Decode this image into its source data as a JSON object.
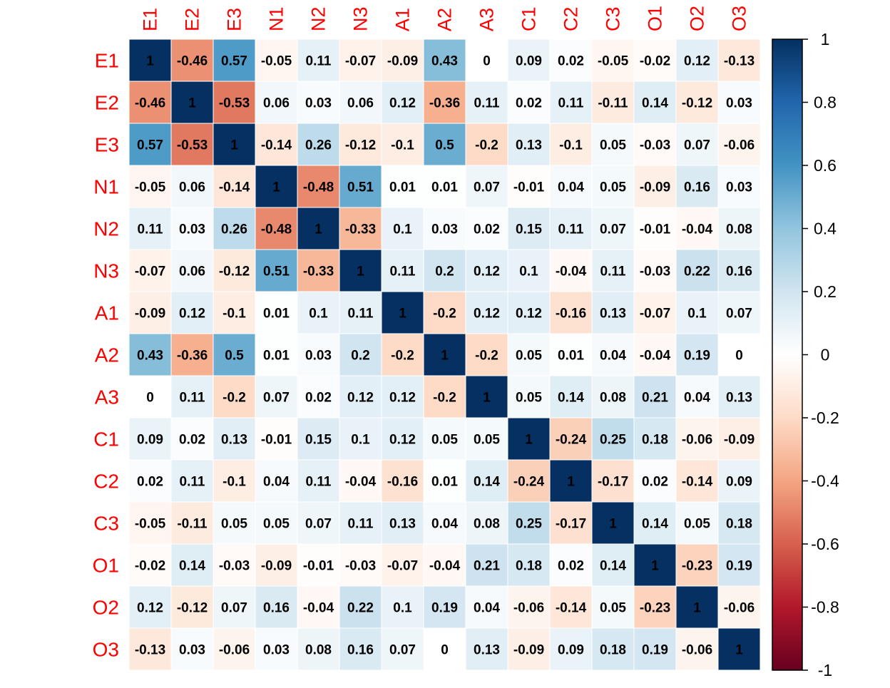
{
  "chart_data": {
    "type": "heatmap",
    "title": "",
    "labels": [
      "E1",
      "E2",
      "E3",
      "N1",
      "N2",
      "N3",
      "A1",
      "A2",
      "A3",
      "C1",
      "C2",
      "C3",
      "O1",
      "O2",
      "O3"
    ],
    "matrix": [
      [
        1,
        -0.46,
        0.57,
        -0.05,
        0.11,
        -0.07,
        -0.09,
        0.43,
        0,
        0.09,
        0.02,
        -0.05,
        -0.02,
        0.12,
        -0.13
      ],
      [
        -0.46,
        1,
        -0.53,
        0.06,
        0.03,
        0.06,
        0.12,
        -0.36,
        0.11,
        0.02,
        0.11,
        -0.11,
        0.14,
        -0.12,
        0.03
      ],
      [
        0.57,
        -0.53,
        1,
        -0.14,
        0.26,
        -0.12,
        -0.1,
        0.5,
        -0.2,
        0.13,
        -0.1,
        0.05,
        -0.03,
        0.07,
        -0.06
      ],
      [
        -0.05,
        0.06,
        -0.14,
        1,
        -0.48,
        0.51,
        0.01,
        0.01,
        0.07,
        -0.01,
        0.04,
        0.05,
        -0.09,
        0.16,
        0.03
      ],
      [
        0.11,
        0.03,
        0.26,
        -0.48,
        1,
        -0.33,
        0.1,
        0.03,
        0.02,
        0.15,
        0.11,
        0.07,
        -0.01,
        -0.04,
        0.08
      ],
      [
        -0.07,
        0.06,
        -0.12,
        0.51,
        -0.33,
        1,
        0.11,
        0.2,
        0.12,
        0.1,
        -0.04,
        0.11,
        -0.03,
        0.22,
        0.16
      ],
      [
        -0.09,
        0.12,
        -0.1,
        0.01,
        0.1,
        0.11,
        1,
        -0.2,
        0.12,
        0.12,
        -0.16,
        0.13,
        -0.07,
        0.1,
        0.07
      ],
      [
        0.43,
        -0.36,
        0.5,
        0.01,
        0.03,
        0.2,
        -0.2,
        1,
        -0.2,
        0.05,
        0.01,
        0.04,
        -0.04,
        0.19,
        0
      ],
      [
        0,
        0.11,
        -0.2,
        0.07,
        0.02,
        0.12,
        0.12,
        -0.2,
        1,
        0.05,
        0.14,
        0.08,
        0.21,
        0.04,
        0.13
      ],
      [
        0.09,
        0.02,
        0.13,
        -0.01,
        0.15,
        0.1,
        0.12,
        0.05,
        0.05,
        1,
        -0.24,
        0.25,
        0.18,
        -0.06,
        -0.09
      ],
      [
        0.02,
        0.11,
        -0.1,
        0.04,
        0.11,
        -0.04,
        -0.16,
        0.01,
        0.14,
        -0.24,
        1,
        -0.17,
        0.02,
        -0.14,
        0.09
      ],
      [
        -0.05,
        -0.11,
        0.05,
        0.05,
        0.07,
        0.11,
        0.13,
        0.04,
        0.08,
        0.25,
        -0.17,
        1,
        0.14,
        0.05,
        0.18
      ],
      [
        -0.02,
        0.14,
        -0.03,
        -0.09,
        -0.01,
        -0.03,
        -0.07,
        -0.04,
        0.21,
        0.18,
        0.02,
        0.14,
        1,
        -0.23,
        0.19
      ],
      [
        0.12,
        -0.12,
        0.07,
        0.16,
        -0.04,
        0.22,
        0.1,
        0.19,
        0.04,
        -0.06,
        -0.14,
        0.05,
        -0.23,
        1,
        -0.06
      ],
      [
        -0.13,
        0.03,
        -0.06,
        0.03,
        0.08,
        0.16,
        0.07,
        0,
        0.13,
        -0.09,
        0.09,
        0.18,
        0.19,
        -0.06,
        1
      ]
    ],
    "colorbar": {
      "range": [
        -1,
        1
      ],
      "ticks": [
        1,
        0.8,
        0.6,
        0.4,
        0.2,
        0,
        -0.2,
        -0.4,
        -0.6,
        -0.8,
        -1
      ],
      "tick_labels": [
        "1",
        "0.8",
        "0.6",
        "0.4",
        "0.2",
        "0",
        "-0.2",
        "-0.4",
        "-0.6",
        "-0.8",
        "-1"
      ]
    },
    "colors": {
      "label_color": "#ff0000",
      "value_text_color": "#000000",
      "colorbar_border": "#000000",
      "palette": [
        "#67001F",
        "#B2182B",
        "#D6604D",
        "#F4A582",
        "#FDDBC7",
        "#FFFFFF",
        "#D1E5F0",
        "#92C5DE",
        "#4393C3",
        "#2166AC",
        "#053061"
      ]
    }
  }
}
